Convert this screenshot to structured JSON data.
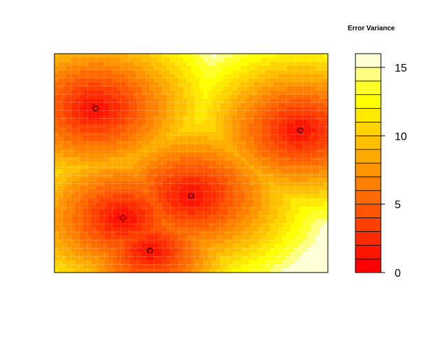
{
  "chart_data": {
    "type": "heatmap",
    "title": "",
    "xlabel": "",
    "ylabel": "",
    "legend": {
      "title": "Error Variance",
      "placement": "right",
      "range": [
        0,
        16
      ],
      "ticks": [
        {
          "value": 0,
          "label": "0"
        },
        {
          "value": 5,
          "label": "5"
        },
        {
          "value": 10,
          "label": "10"
        },
        {
          "value": 15,
          "label": "15"
        }
      ],
      "bands": [
        {
          "from": 0,
          "to": 1,
          "color": "#ff0000"
        },
        {
          "from": 1,
          "to": 2,
          "color": "#ff1500"
        },
        {
          "from": 2,
          "to": 3,
          "color": "#ff2a00"
        },
        {
          "from": 3,
          "to": 4,
          "color": "#ff3f00"
        },
        {
          "from": 4,
          "to": 5,
          "color": "#ff5500"
        },
        {
          "from": 5,
          "to": 6,
          "color": "#ff6a00"
        },
        {
          "from": 6,
          "to": 7,
          "color": "#ff7f00"
        },
        {
          "from": 7,
          "to": 8,
          "color": "#ff9400"
        },
        {
          "from": 8,
          "to": 9,
          "color": "#ffaa00"
        },
        {
          "from": 9,
          "to": 10,
          "color": "#ffbf00"
        },
        {
          "from": 10,
          "to": 11,
          "color": "#ffd400"
        },
        {
          "from": 11,
          "to": 12,
          "color": "#ffe900"
        },
        {
          "from": 12,
          "to": 13,
          "color": "#ffff00"
        },
        {
          "from": 13,
          "to": 14,
          "color": "#ffff2a"
        },
        {
          "from": 14,
          "to": 15,
          "color": "#ffff80"
        },
        {
          "from": 15,
          "to": 16,
          "color": "#ffffd5"
        }
      ]
    },
    "domain": {
      "x": [
        0,
        1
      ],
      "y": [
        0,
        1
      ]
    },
    "grid": true,
    "baseline_variance": 15.5,
    "observation_points": [
      {
        "x": 0.15,
        "y": 0.75,
        "min": 0.5,
        "radius": 0.52
      },
      {
        "x": 0.25,
        "y": 0.25,
        "min": 0.5,
        "radius": 0.5
      },
      {
        "x": 0.35,
        "y": 0.1,
        "min": 0.5,
        "radius": 0.42
      },
      {
        "x": 0.5,
        "y": 0.35,
        "min": 0.5,
        "radius": 0.52
      },
      {
        "x": 0.9,
        "y": 0.65,
        "min": 0.5,
        "radius": 0.5
      }
    ]
  }
}
